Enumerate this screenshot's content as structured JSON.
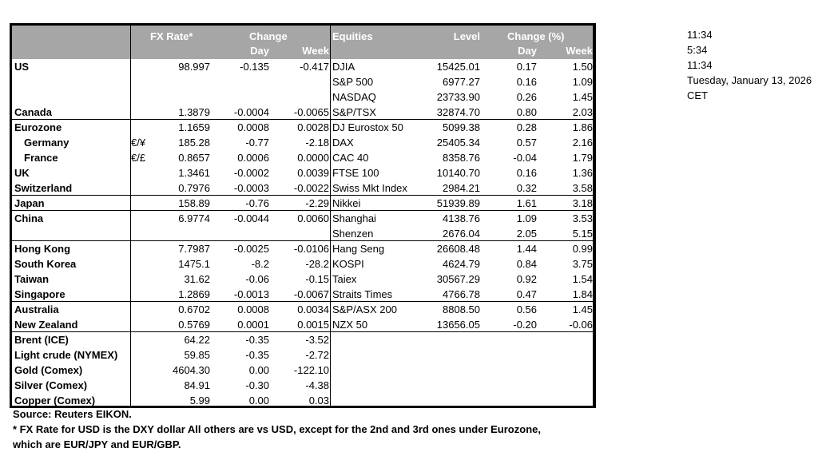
{
  "header": {
    "fx_rate": "FX Rate*",
    "change": "Change",
    "day": "Day",
    "week": "Week",
    "equities": "Equities",
    "level": "Level",
    "change_pct": "Change (%)",
    "eq_day": "Day",
    "eq_week": "Week"
  },
  "rows": [
    {
      "label": "US",
      "sym": "",
      "fx": "98.997",
      "day": "-0.135",
      "week": "-0.417",
      "eq": "DJIA",
      "level": "15425.01",
      "eday": "0.17",
      "eweek": "1.50"
    },
    {
      "label": "",
      "sym": "",
      "fx": "",
      "day": "",
      "week": "",
      "eq": "S&P 500",
      "level": "6977.27",
      "eday": "0.16",
      "eweek": "1.09"
    },
    {
      "label": "",
      "sym": "",
      "fx": "",
      "day": "",
      "week": "",
      "eq": "NASDAQ",
      "level": "23733.90",
      "eday": "0.26",
      "eweek": "1.45"
    },
    {
      "label": "Canada",
      "sym": "",
      "fx": "1.3879",
      "day": "-0.0004",
      "week": "-0.0065",
      "eq": "S&P/TSX",
      "level": "32874.70",
      "eday": "0.80",
      "eweek": "2.03"
    },
    {
      "label": "Eurozone",
      "sym": "",
      "fx": "1.1659",
      "day": "0.0008",
      "week": "0.0028",
      "eq": "DJ Eurostox 50",
      "level": "5099.38",
      "eday": "0.28",
      "eweek": "1.86",
      "sep": true
    },
    {
      "label": "Germany",
      "indent": true,
      "sym": "€/¥",
      "fx": "185.28",
      "day": "-0.77",
      "week": "-2.18",
      "eq": "DAX",
      "level": "25405.34",
      "eday": "0.57",
      "eweek": "2.16"
    },
    {
      "label": "France",
      "indent": true,
      "sym": "€/£",
      "fx": "0.8657",
      "day": "0.0006",
      "week": "0.0000",
      "eq": "CAC 40",
      "level": "8358.76",
      "eday": "-0.04",
      "eweek": "1.79"
    },
    {
      "label": "UK",
      "sym": "",
      "fx": "1.3461",
      "day": "-0.0002",
      "week": "0.0039",
      "eq": "FTSE 100",
      "level": "10140.70",
      "eday": "0.16",
      "eweek": "1.36"
    },
    {
      "label": "Switzerland",
      "sym": "",
      "fx": "0.7976",
      "day": "-0.0003",
      "week": "-0.0022",
      "eq": "Swiss Mkt Index",
      "level": "2984.21",
      "eday": "0.32",
      "eweek": "3.58"
    },
    {
      "label": "Japan",
      "sym": "",
      "fx": "158.89",
      "day": "-0.76",
      "week": "-2.29",
      "eq": "Nikkei",
      "level": "51939.89",
      "eday": "1.61",
      "eweek": "3.18",
      "sep": true
    },
    {
      "label": "China",
      "sym": "",
      "fx": "6.9774",
      "day": "-0.0044",
      "week": "0.0060",
      "eq": "Shanghai",
      "level": "4138.76",
      "eday": "1.09",
      "eweek": "3.53",
      "sep": true
    },
    {
      "label": "",
      "sym": "",
      "fx": "",
      "day": "",
      "week": "",
      "eq": "Shenzen",
      "level": "2676.04",
      "eday": "2.05",
      "eweek": "5.15"
    },
    {
      "label": "Hong Kong",
      "sym": "",
      "fx": "7.7987",
      "day": "-0.0025",
      "week": "-0.0106",
      "eq": "Hang Seng",
      "level": "26608.48",
      "eday": "1.44",
      "eweek": "0.99",
      "sep": true
    },
    {
      "label": "South Korea",
      "sym": "",
      "fx": "1475.1",
      "day": "-8.2",
      "week": "-28.2",
      "eq": "KOSPI",
      "level": "4624.79",
      "eday": "0.84",
      "eweek": "3.75"
    },
    {
      "label": "Taiwan",
      "sym": "",
      "fx": "31.62",
      "day": "-0.06",
      "week": "-0.15",
      "eq": "Taiex",
      "level": "30567.29",
      "eday": "0.92",
      "eweek": "1.54"
    },
    {
      "label": "Singapore",
      "sym": "",
      "fx": "1.2869",
      "day": "-0.0013",
      "week": "-0.0067",
      "eq": "Straits Times",
      "level": "4766.78",
      "eday": "0.47",
      "eweek": "1.84"
    },
    {
      "label": "Australia",
      "sym": "",
      "fx": "0.6702",
      "day": "0.0008",
      "week": "0.0034",
      "eq": "S&P/ASX  200",
      "level": "8808.50",
      "eday": "0.56",
      "eweek": "1.45",
      "sep": true
    },
    {
      "label": "New Zealand",
      "sym": "",
      "fx": "0.5769",
      "day": "0.0001",
      "week": "0.0015",
      "eq": "NZX 50",
      "level": "13656.05",
      "eday": "-0.20",
      "eweek": "-0.06"
    },
    {
      "label": "Brent (ICE)",
      "sym": "",
      "fx": "64.22",
      "day": "-0.35",
      "week": "-3.52",
      "eq": "",
      "level": "",
      "eday": "",
      "eweek": "",
      "sep": true
    },
    {
      "label": "Light crude (NYMEX)",
      "sym": "",
      "fx": "59.85",
      "day": "-0.35",
      "week": "-2.72",
      "eq": "",
      "level": "",
      "eday": "",
      "eweek": ""
    },
    {
      "label": "Gold (Comex)",
      "sym": "",
      "fx": "4604.30",
      "day": "0.00",
      "week": "-122.10",
      "eq": "",
      "level": "",
      "eday": "",
      "eweek": ""
    },
    {
      "label": "Silver (Comex)",
      "sym": "",
      "fx": "84.91",
      "day": "-0.30",
      "week": "-4.38",
      "eq": "",
      "level": "",
      "eday": "",
      "eweek": ""
    },
    {
      "label": "Copper (Comex)",
      "sym": "",
      "fx": "5.99",
      "day": "0.00",
      "week": "0.03",
      "eq": "",
      "level": "",
      "eday": "",
      "eweek": ""
    }
  ],
  "footer": {
    "source": "Source:  Reuters EIKON.",
    "note1": "* FX Rate for USD is the DXY dollar  All others are vs USD, except for the 2nd and 3rd ones under Eurozone,",
    "note2": " which are EUR/JPY and EUR/GBP."
  },
  "side": {
    "time1": "11:34",
    "time2": "5:34",
    "time3": "11:34",
    "date": "Tuesday, January 13, 2026",
    "tz": "CET"
  },
  "colors": {
    "header_bg": "#a6a6a6",
    "header_text": "#ffffff"
  }
}
